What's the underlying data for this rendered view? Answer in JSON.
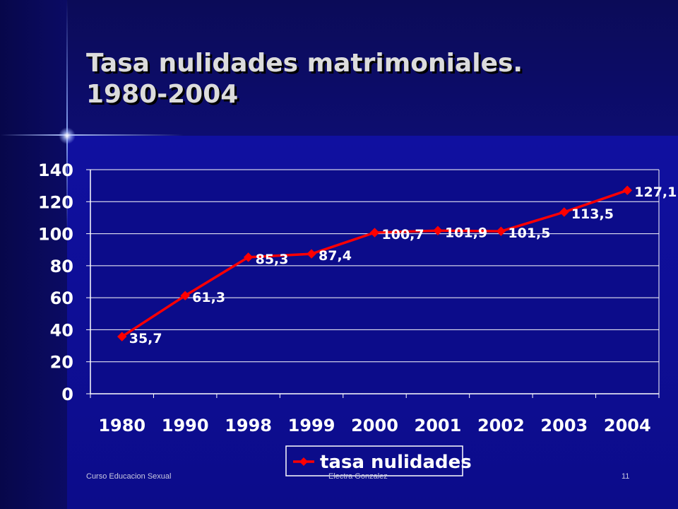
{
  "title": "Tasa nulidades matrimoniales. 1980-2004",
  "footer": {
    "left": "Curso Educacion Sexual",
    "center": "Electra Gonzalez",
    "page": "11"
  },
  "colors": {
    "background": "#0c0c8a",
    "plot_area": "#0c0c8a",
    "series": "#ff0000",
    "text": "#ffffff"
  },
  "chart_data": {
    "type": "line",
    "title": "",
    "xlabel": "",
    "ylabel": "",
    "categories": [
      "1980",
      "1990",
      "1998",
      "1999",
      "2000",
      "2001",
      "2002",
      "2003",
      "2004"
    ],
    "series": [
      {
        "name": "tasa nulidades",
        "values": [
          35.7,
          61.3,
          85.3,
          87.4,
          100.7,
          101.9,
          101.5,
          113.5,
          127.1
        ],
        "labels": [
          "35,7",
          "61,3",
          "85,3",
          "87,4",
          "100,7",
          "101,9",
          "101,5",
          "113,5",
          "127,1"
        ]
      }
    ],
    "ylim": [
      0,
      140
    ],
    "yticks": [
      "0",
      "20",
      "40",
      "60",
      "80",
      "100",
      "120",
      "140"
    ],
    "grid": true,
    "legend": "bottom",
    "marker": "diamond"
  }
}
